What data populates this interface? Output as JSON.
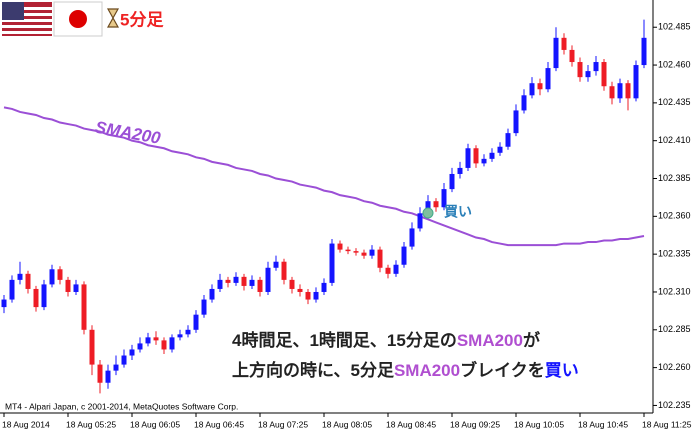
{
  "chart_data": {
    "type": "candlestick",
    "title": "5分足",
    "categories": [
      "18 Aug 2014",
      null,
      null,
      null,
      null,
      null,
      null,
      null,
      "18 Aug 05:25",
      null,
      null,
      null,
      null,
      null,
      null,
      null,
      "18 Aug 06:05",
      null,
      null,
      null,
      null,
      null,
      null,
      null,
      "18 Aug 06:45",
      null,
      null,
      null,
      null,
      null,
      null,
      null,
      "18 Aug 07:25",
      null,
      null,
      null,
      null,
      null,
      null,
      null,
      "18 Aug 08:05",
      null,
      null,
      null,
      null,
      null,
      null,
      null,
      "18 Aug 08:45",
      null,
      null,
      null,
      null,
      null,
      null,
      null,
      "18 Aug 09:25",
      null,
      null,
      null,
      null,
      null,
      null,
      null,
      "18 Aug 10:05",
      null,
      null,
      null,
      null,
      null,
      null,
      null,
      "18 Aug 10:45",
      null,
      null,
      null,
      null,
      null,
      null,
      null,
      "18 Aug 11:25"
    ],
    "open": [
      102.3,
      102.305,
      102.318,
      102.322,
      102.312,
      102.3,
      102.315,
      102.325,
      102.318,
      102.31,
      102.315,
      102.285,
      102.262,
      102.25,
      102.258,
      102.262,
      102.268,
      102.272,
      102.276,
      102.28,
      102.278,
      102.272,
      102.28,
      102.282,
      102.285,
      102.295,
      102.305,
      102.312,
      102.318,
      102.316,
      102.32,
      102.314,
      102.318,
      102.31,
      102.326,
      102.33,
      102.318,
      102.312,
      102.31,
      102.305,
      102.31,
      102.316,
      102.342,
      102.338,
      102.337,
      102.336,
      102.334,
      102.338,
      102.326,
      102.322,
      102.328,
      102.34,
      102.352,
      102.362,
      102.37,
      102.366,
      102.378,
      102.388,
      102.392,
      102.405,
      102.395,
      102.398,
      102.402,
      102.406,
      102.415,
      102.43,
      102.44,
      102.448,
      102.444,
      102.458,
      102.478,
      102.47,
      102.462,
      102.452,
      102.456,
      102.462,
      102.446,
      102.438,
      102.448,
      102.438,
      102.46
    ],
    "high": [
      102.308,
      102.321,
      102.33,
      102.324,
      102.314,
      102.318,
      102.328,
      102.327,
      102.32,
      102.318,
      102.317,
      102.288,
      102.265,
      102.262,
      102.268,
      102.272,
      102.275,
      102.28,
      102.283,
      102.284,
      102.28,
      102.282,
      102.285,
      102.288,
      102.298,
      102.308,
      102.315,
      102.322,
      102.32,
      102.323,
      102.322,
      102.321,
      102.32,
      102.33,
      102.334,
      102.332,
      102.32,
      102.315,
      102.312,
      102.313,
      102.319,
      102.345,
      102.344,
      102.34,
      102.339,
      102.338,
      102.341,
      102.34,
      102.328,
      102.331,
      102.343,
      102.356,
      102.366,
      102.374,
      102.372,
      102.382,
      102.392,
      102.396,
      102.408,
      102.407,
      102.401,
      102.405,
      102.409,
      102.418,
      102.434,
      102.444,
      102.452,
      102.451,
      102.462,
      102.485,
      102.481,
      102.473,
      102.465,
      102.46,
      102.466,
      102.464,
      102.449,
      102.451,
      102.45,
      102.463,
      102.49
    ],
    "low": [
      102.296,
      102.303,
      102.315,
      102.309,
      102.297,
      102.298,
      102.313,
      102.315,
      102.307,
      102.308,
      102.282,
      102.255,
      102.243,
      102.246,
      102.255,
      102.26,
      102.265,
      102.27,
      102.274,
      102.275,
      102.269,
      102.27,
      102.278,
      102.28,
      102.283,
      102.293,
      102.303,
      102.31,
      102.313,
      102.314,
      102.311,
      102.312,
      102.307,
      102.308,
      102.324,
      102.315,
      102.309,
      102.307,
      102.302,
      102.303,
      102.308,
      102.314,
      102.336,
      102.335,
      102.334,
      102.332,
      102.332,
      102.323,
      102.319,
      102.32,
      102.326,
      102.338,
      102.35,
      102.36,
      102.363,
      102.364,
      102.376,
      102.385,
      102.39,
      102.392,
      102.393,
      102.396,
      102.4,
      102.404,
      102.413,
      102.428,
      102.438,
      102.44,
      102.442,
      102.456,
      102.467,
      102.459,
      102.449,
      102.449,
      102.453,
      102.443,
      102.434,
      102.435,
      102.43,
      102.436,
      102.458
    ],
    "close": [
      102.305,
      102.318,
      102.322,
      102.312,
      102.3,
      102.315,
      102.325,
      102.318,
      102.31,
      102.315,
      102.285,
      102.262,
      102.25,
      102.258,
      102.262,
      102.268,
      102.272,
      102.276,
      102.28,
      102.278,
      102.272,
      102.28,
      102.282,
      102.285,
      102.295,
      102.305,
      102.312,
      102.318,
      102.316,
      102.32,
      102.314,
      102.318,
      102.31,
      102.326,
      102.33,
      102.318,
      102.312,
      102.31,
      102.305,
      102.31,
      102.316,
      102.342,
      102.338,
      102.337,
      102.336,
      102.334,
      102.338,
      102.326,
      102.322,
      102.328,
      102.34,
      102.352,
      102.362,
      102.37,
      102.366,
      102.378,
      102.388,
      102.392,
      102.405,
      102.395,
      102.398,
      102.402,
      102.406,
      102.415,
      102.43,
      102.44,
      102.448,
      102.444,
      102.458,
      102.478,
      102.47,
      102.462,
      102.452,
      102.456,
      102.462,
      102.446,
      102.438,
      102.448,
      102.438,
      102.46,
      102.478
    ],
    "up_color": "#1414ff",
    "down_color": "#ee1c25",
    "series": [
      {
        "name": "SMA200",
        "color": "#9b4fd6",
        "values": [
          102.432,
          102.431,
          102.429,
          102.428,
          102.427,
          102.425,
          102.424,
          102.422,
          102.421,
          102.42,
          102.418,
          102.417,
          102.416,
          102.414,
          102.413,
          102.412,
          102.41,
          102.409,
          102.407,
          102.406,
          102.405,
          102.403,
          102.402,
          102.401,
          102.399,
          102.398,
          102.396,
          102.395,
          102.394,
          102.392,
          102.391,
          102.39,
          102.388,
          102.387,
          102.385,
          102.384,
          102.383,
          102.381,
          102.38,
          102.379,
          102.377,
          102.376,
          102.374,
          102.373,
          102.372,
          102.37,
          102.369,
          102.367,
          102.366,
          102.365,
          102.363,
          102.362,
          102.36,
          102.358,
          102.356,
          102.354,
          102.352,
          102.35,
          102.348,
          102.346,
          102.345,
          102.343,
          102.342,
          102.341,
          102.341,
          102.341,
          102.341,
          102.341,
          102.341,
          102.341,
          102.342,
          102.342,
          102.342,
          102.343,
          102.343,
          102.344,
          102.344,
          102.345,
          102.345,
          102.346,
          102.347
        ]
      }
    ],
    "ylim": [
      102.23,
      102.503
    ],
    "yticks": [
      102.235,
      {
        "value": 102.26,
        "label": "102.260"
      },
      102.285,
      {
        "value": 102.31,
        "label": "102.310"
      },
      102.335,
      {
        "value": 102.36,
        "label": "102.360"
      },
      102.385,
      {
        "value": 102.41,
        "label": "102.410"
      },
      102.435,
      {
        "value": 102.46,
        "label": "102.460"
      },
      102.485
    ],
    "buy_label": "買い",
    "caption": [
      [
        {
          "text": "4時間足、1時間足、15分足の",
          "color": "#222222"
        },
        {
          "text": "SMA200",
          "color": "#b04fd0"
        },
        {
          "text": "が",
          "color": "#222222"
        }
      ],
      [
        {
          "text": "上方向の時に、5分足",
          "color": "#222222"
        },
        {
          "text": "SMA200",
          "color": "#b04fd0"
        },
        {
          "text": "ブレイクを",
          "color": "#222222"
        },
        {
          "text": "買い",
          "color": "#1414ff"
        }
      ]
    ],
    "footer": "MT4 - Alpari Japan, c 2001-2014, MetaQuotes Software Corp."
  }
}
